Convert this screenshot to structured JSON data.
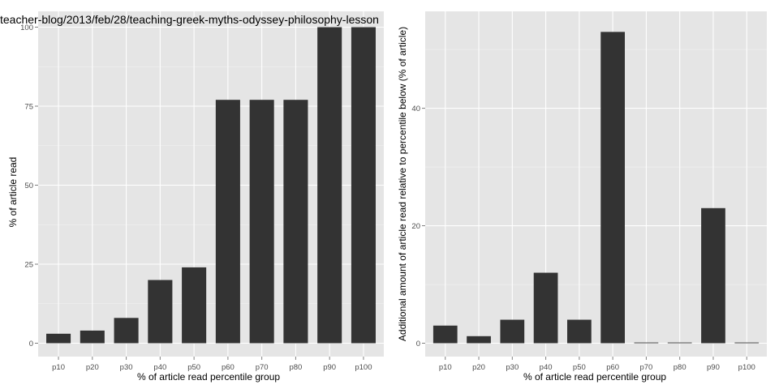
{
  "chart_data": [
    {
      "type": "bar",
      "title": "teacher-blog/2013/feb/28/teaching-greek-myths-odyssey-philosophy-lesson",
      "xlabel": "% of article read percentile group",
      "ylabel": "% of article read",
      "categories": [
        "p10",
        "p20",
        "p30",
        "p40",
        "p50",
        "p60",
        "p70",
        "p80",
        "p90",
        "p100"
      ],
      "values": [
        3,
        4,
        8,
        20,
        24,
        77,
        77,
        77,
        100,
        100
      ],
      "ylim": [
        0,
        100
      ],
      "yticks": [
        0,
        25,
        50,
        75,
        100
      ],
      "grid": true,
      "bar_color": "#333333",
      "panel_color": "#e5e5e5"
    },
    {
      "type": "bar",
      "title": "",
      "xlabel": "% of article read percentile group",
      "ylabel": "Additional amount of article read relative to percentile below (% of article)",
      "categories": [
        "p10",
        "p20",
        "p30",
        "p40",
        "p50",
        "p60",
        "p70",
        "p80",
        "p90",
        "p100"
      ],
      "values": [
        3,
        1.2,
        4,
        12,
        4,
        53,
        0,
        0,
        23,
        0
      ],
      "ylim": [
        0,
        55
      ],
      "yticks": [
        0,
        20,
        40
      ],
      "grid": true,
      "bar_color": "#333333",
      "panel_color": "#e5e5e5"
    }
  ]
}
